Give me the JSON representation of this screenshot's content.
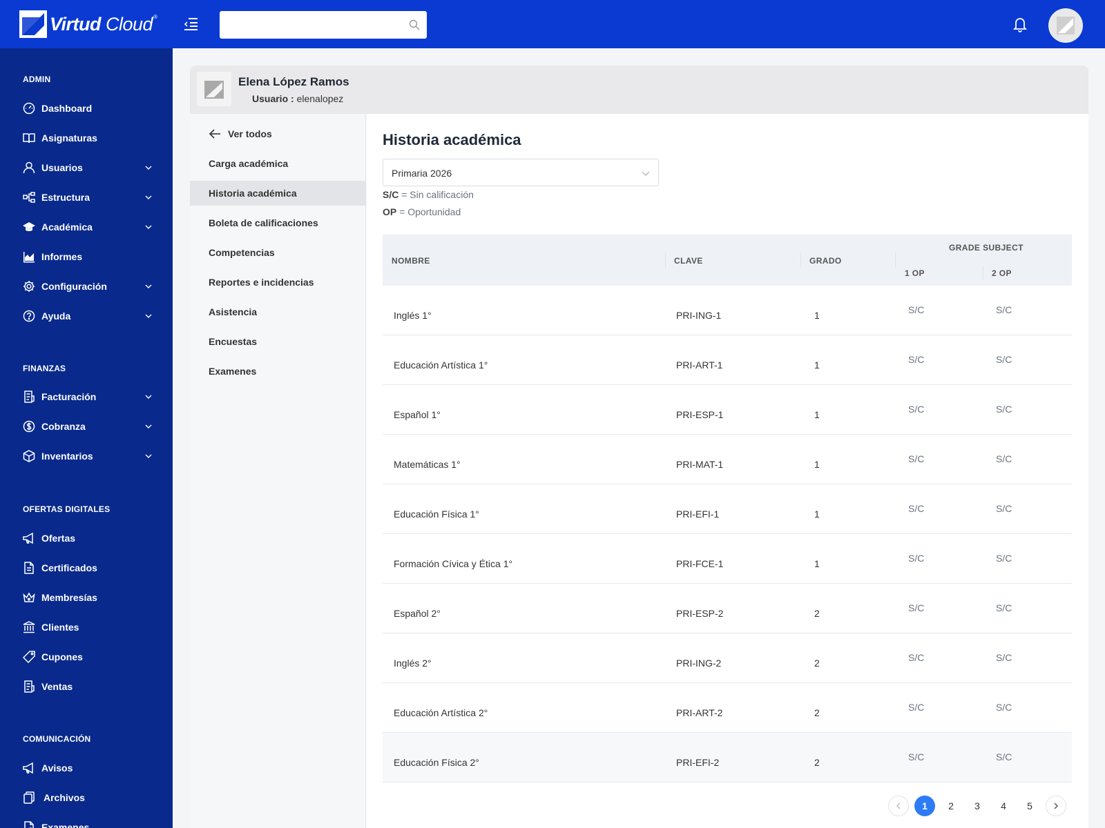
{
  "brand": {
    "name_bold": "Virtud",
    "name_light": "Cloud",
    "mark": "®"
  },
  "colors": {
    "topbar": "#0a3ad1",
    "sidebar": "#092a8c",
    "accent": "#2e7bf6"
  },
  "search": {
    "value": "",
    "placeholder": ""
  },
  "sidebar": {
    "sections": [
      {
        "title": "ADMIN",
        "items": [
          {
            "label": "Dashboard",
            "icon": "dashboard-icon",
            "expandable": false
          },
          {
            "label": "Asignaturas",
            "icon": "book-icon",
            "expandable": false
          },
          {
            "label": "Usuarios",
            "icon": "user-icon",
            "expandable": true
          },
          {
            "label": "Estructura",
            "icon": "structure-icon",
            "expandable": true
          },
          {
            "label": "Académica",
            "icon": "graduation-cap-icon",
            "expandable": true
          },
          {
            "label": "Informes",
            "icon": "chart-icon",
            "expandable": false
          },
          {
            "label": "Configuración",
            "icon": "gear-icon",
            "expandable": true
          },
          {
            "label": "Ayuda",
            "icon": "help-icon",
            "expandable": true
          }
        ]
      },
      {
        "title": "FINANZAS",
        "items": [
          {
            "label": "Facturación",
            "icon": "invoice-icon",
            "expandable": true
          },
          {
            "label": "Cobranza",
            "icon": "dollar-icon",
            "expandable": true
          },
          {
            "label": "Inventarios",
            "icon": "box-icon",
            "expandable": true
          }
        ]
      },
      {
        "title": "OFERTAS DIGITALES",
        "items": [
          {
            "label": "Ofertas",
            "icon": "megaphone-icon",
            "expandable": false
          },
          {
            "label": "Certificados",
            "icon": "document-icon",
            "expandable": false
          },
          {
            "label": "Membresías",
            "icon": "crown-icon",
            "expandable": false
          },
          {
            "label": "Clientes",
            "icon": "bank-icon",
            "expandable": false
          },
          {
            "label": "Cupones",
            "icon": "tag-icon",
            "expandable": false
          },
          {
            "label": "Ventas",
            "icon": "receipt-icon",
            "expandable": false
          }
        ]
      },
      {
        "title": "COMUNICACIÓN",
        "items": [
          {
            "label": "Avisos",
            "icon": "megaphone-icon",
            "expandable": false
          },
          {
            "label": "Archivos",
            "icon": "files-icon",
            "expandable": false
          },
          {
            "label": "Examenes",
            "icon": "exam-icon",
            "expandable": false
          }
        ]
      }
    ]
  },
  "profile": {
    "name": "Elena López Ramos",
    "user_label": "Usuario :",
    "username": "elenalopez"
  },
  "subnav": {
    "back_label": "Ver todos",
    "items": [
      {
        "label": "Carga académica",
        "active": false
      },
      {
        "label": "Historia académica",
        "active": true
      },
      {
        "label": "Boleta de calificaciones",
        "active": false
      },
      {
        "label": "Competencias",
        "active": false
      },
      {
        "label": "Reportes e incidencias",
        "active": false
      },
      {
        "label": "Asistencia",
        "active": false
      },
      {
        "label": "Encuestas",
        "active": false
      },
      {
        "label": "Examenes",
        "active": false
      }
    ]
  },
  "main": {
    "title": "Historia académica",
    "period_select": {
      "value": "Primaria 2026"
    },
    "legend": [
      {
        "abbr": "S/C",
        "text": "= Sin calificación"
      },
      {
        "abbr": "OP",
        "text": "= Oportunidad"
      }
    ],
    "table": {
      "headers": {
        "nombre": "NOMBRE",
        "clave": "CLAVE",
        "grado": "GRADO",
        "group": "GRADE SUBJECT",
        "op1": "1 OP",
        "op2": "2 OP"
      },
      "rows": [
        {
          "nombre": "Inglés 1°",
          "clave": "PRI-ING-1",
          "grado": "1",
          "op1": "S/C",
          "op2": "S/C"
        },
        {
          "nombre": "Educación Artística 1°",
          "clave": "PRI-ART-1",
          "grado": "1",
          "op1": "S/C",
          "op2": "S/C"
        },
        {
          "nombre": "Español 1°",
          "clave": "PRI-ESP-1",
          "grado": "1",
          "op1": "S/C",
          "op2": "S/C"
        },
        {
          "nombre": "Matemáticas 1°",
          "clave": "PRI-MAT-1",
          "grado": "1",
          "op1": "S/C",
          "op2": "S/C"
        },
        {
          "nombre": "Educación Física 1°",
          "clave": "PRI-EFI-1",
          "grado": "1",
          "op1": "S/C",
          "op2": "S/C"
        },
        {
          "nombre": "Formación Cívica y Ética 1°",
          "clave": "PRI-FCE-1",
          "grado": "1",
          "op1": "S/C",
          "op2": "S/C"
        },
        {
          "nombre": "Español 2°",
          "clave": "PRI-ESP-2",
          "grado": "2",
          "op1": "S/C",
          "op2": "S/C"
        },
        {
          "nombre": "Inglés 2°",
          "clave": "PRI-ING-2",
          "grado": "2",
          "op1": "S/C",
          "op2": "S/C"
        },
        {
          "nombre": "Educación Artística 2°",
          "clave": "PRI-ART-2",
          "grado": "2",
          "op1": "S/C",
          "op2": "S/C"
        },
        {
          "nombre": "Educación Física 2°",
          "clave": "PRI-EFI-2",
          "grado": "2",
          "op1": "S/C",
          "op2": "S/C"
        }
      ]
    },
    "pagination": {
      "pages": [
        "1",
        "2",
        "3",
        "4",
        "5"
      ],
      "current": "1"
    }
  }
}
